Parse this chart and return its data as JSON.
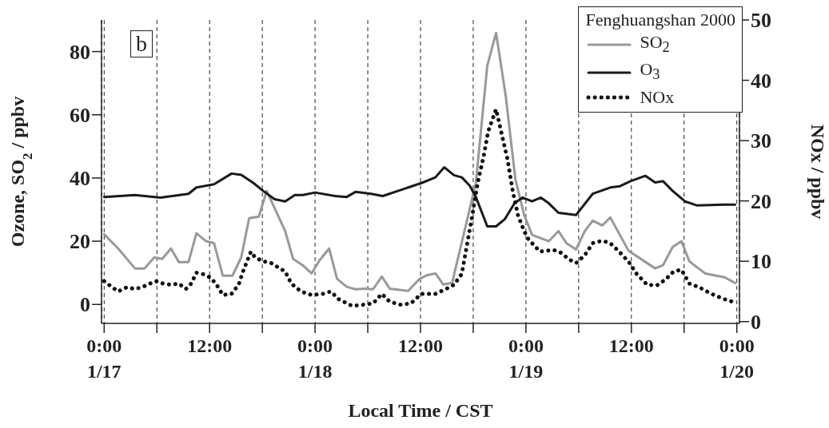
{
  "chart_data": {
    "type": "line",
    "xlabel": "Local Time / CST",
    "ylabel": "Ozone, SO$_{2}$  / ppbv",
    "y2label": "NOx / ppbv",
    "legend_title": "Fenghuangshan 2000",
    "legend": "top right",
    "grid": "x",
    "annotations": [
      "b"
    ],
    "xlim": [
      "2000-01-16T23:42",
      "2000-01-20T00:18"
    ],
    "ylim": [
      -6,
      90
    ],
    "y2lim": [
      -0.3,
      50
    ],
    "xticks": [
      {
        "value": "2000-01-17T00:00",
        "label": "0:00\n1/17"
      },
      {
        "value": "2000-01-17T06:00",
        "label": null
      },
      {
        "value": "2000-01-17T12:00",
        "label": "12:00"
      },
      {
        "value": "2000-01-17T18:00",
        "label": null
      },
      {
        "value": "2000-01-18T00:00",
        "label": "0:00\n1/18"
      },
      {
        "value": "2000-01-18T06:00",
        "label": null
      },
      {
        "value": "2000-01-18T12:00",
        "label": "12:00"
      },
      {
        "value": "2000-01-18T18:00",
        "label": null
      },
      {
        "value": "2000-01-19T00:00",
        "label": "0:00\n1/19"
      },
      {
        "value": "2000-01-19T06:00",
        "label": null
      },
      {
        "value": "2000-01-19T12:00",
        "label": "12:00"
      },
      {
        "value": "2000-01-19T18:00",
        "label": null
      },
      {
        "value": "2000-01-20T00:00",
        "label": "0:00\n1/20"
      }
    ],
    "yticks": [
      0,
      20,
      40,
      60,
      80
    ],
    "y2ticks": [
      0,
      10,
      20,
      30,
      40,
      50
    ],
    "series": [
      {
        "name": "SO$_{2}$",
        "color": "#999999",
        "line_style": "solid",
        "x": [
          "2000-01-17T00:00",
          "2000-01-17T01:36",
          "2000-01-17T03:30",
          "2000-01-17T04:36",
          "2000-01-17T05:42",
          "2000-01-17T06:36",
          "2000-01-17T07:36",
          "2000-01-17T08:30",
          "2000-01-17T09:36",
          "2000-01-17T10:30",
          "2000-01-17T11:36",
          "2000-01-17T12:30",
          "2000-01-17T13:30",
          "2000-01-17T14:36",
          "2000-01-17T15:36",
          "2000-01-17T16:30",
          "2000-01-17T17:36",
          "2000-01-17T18:30",
          "2000-01-17T20:36",
          "2000-01-17T21:30",
          "2000-01-17T22:36",
          "2000-01-17T23:36",
          "2000-01-18T00:30",
          "2000-01-18T01:36",
          "2000-01-18T02:30",
          "2000-01-18T03:36",
          "2000-01-18T04:36",
          "2000-01-18T05:42",
          "2000-01-18T06:36",
          "2000-01-18T07:36",
          "2000-01-18T08:30",
          "2000-01-18T10:36",
          "2000-01-18T11:54",
          "2000-01-18T12:48",
          "2000-01-18T13:42",
          "2000-01-18T14:36",
          "2000-01-18T15:36",
          "2000-01-18T18:18",
          "2000-01-18T19:36",
          "2000-01-18T20:36",
          "2000-01-18T21:42",
          "2000-01-18T22:48",
          "2000-01-18T23:48",
          "2000-01-19T00:42",
          "2000-01-19T02:36",
          "2000-01-19T03:42",
          "2000-01-19T04:36",
          "2000-01-19T05:42",
          "2000-01-19T06:42",
          "2000-01-19T07:36",
          "2000-01-19T08:42",
          "2000-01-19T09:36",
          "2000-01-19T11:42",
          "2000-01-19T14:42",
          "2000-01-19T15:36",
          "2000-01-19T16:42",
          "2000-01-19T17:42",
          "2000-01-19T18:36",
          "2000-01-19T20:24",
          "2000-01-19T22:36",
          "2000-01-19T23:48"
        ],
        "values": [
          22.2,
          17.7,
          11.4,
          11.4,
          14.9,
          14.4,
          17.7,
          13.4,
          13.4,
          22.5,
          20,
          19.4,
          9.1,
          9.1,
          14.9,
          27.3,
          27.8,
          35.9,
          23.2,
          14.4,
          12.4,
          9.8,
          13.9,
          17.7,
          8.1,
          5.6,
          4.8,
          5,
          4.8,
          8.8,
          5,
          4.3,
          8.1,
          9.3,
          9.8,
          6.3,
          6.8,
          38.4,
          75.5,
          85.9,
          66,
          39.6,
          28.3,
          22,
          20,
          23.2,
          19.4,
          17.4,
          23.2,
          26.5,
          25,
          27.5,
          16.9,
          11.4,
          12.4,
          18.2,
          20,
          13.6,
          9.8,
          8.6,
          6.8
        ]
      },
      {
        "name": "O$_{3}$",
        "color": "#1a1a1a",
        "line_style": "solid",
        "x": [
          "2000-01-17T00:00",
          "2000-01-17T03:30",
          "2000-01-17T06:24",
          "2000-01-17T09:36",
          "2000-01-17T10:30",
          "2000-01-17T12:30",
          "2000-01-17T14:30",
          "2000-01-17T15:36",
          "2000-01-17T17:00",
          "2000-01-17T18:06",
          "2000-01-17T19:24",
          "2000-01-17T20:36",
          "2000-01-17T21:42",
          "2000-01-17T22:36",
          "2000-01-18T00:00",
          "2000-01-18T02:18",
          "2000-01-18T03:36",
          "2000-01-18T04:36",
          "2000-01-18T06:24",
          "2000-01-18T07:42",
          "2000-01-18T10:36",
          "2000-01-18T12:06",
          "2000-01-18T13:42",
          "2000-01-18T14:42",
          "2000-01-18T15:48",
          "2000-01-18T16:42",
          "2000-01-18T17:36",
          "2000-01-18T18:18",
          "2000-01-18T19:36",
          "2000-01-18T20:36",
          "2000-01-18T21:36",
          "2000-01-18T22:42",
          "2000-01-18T23:36",
          "2000-01-19T00:42",
          "2000-01-19T01:42",
          "2000-01-19T02:36",
          "2000-01-19T03:42",
          "2000-01-19T05:42",
          "2000-01-19T07:36",
          "2000-01-19T09:36",
          "2000-01-19T10:42",
          "2000-01-19T11:54",
          "2000-01-19T13:36",
          "2000-01-19T14:42",
          "2000-01-19T15:36",
          "2000-01-19T16:42",
          "2000-01-19T18:06",
          "2000-01-19T19:30",
          "2000-01-19T22:36",
          "2000-01-19T23:48"
        ],
        "values": [
          34,
          34.6,
          33.8,
          35,
          37,
          38,
          41.4,
          41,
          38.4,
          35.9,
          33.3,
          32.6,
          34.6,
          34.6,
          35.4,
          34.3,
          34,
          35.6,
          35,
          34.3,
          37,
          38.4,
          40.2,
          43.4,
          40.9,
          40.2,
          37.6,
          34,
          24.7,
          24.7,
          27,
          32,
          33.8,
          32.6,
          33.8,
          32,
          29,
          28.3,
          35,
          37,
          37.4,
          39,
          40.7,
          38.6,
          39,
          35.9,
          32.6,
          31.3,
          31.6,
          31.6
        ]
      },
      {
        "name": "NOx",
        "color": "#111111",
        "line_style": "dotted",
        "axis": "y2",
        "x": [
          "2000-01-17T00:00",
          "2000-01-17T00:54",
          "2000-01-17T01:36",
          "2000-01-17T02:36",
          "2000-01-17T03:30",
          "2000-01-17T04:18",
          "2000-01-17T05:12",
          "2000-01-17T05:54",
          "2000-01-17T06:42",
          "2000-01-17T07:36",
          "2000-01-17T08:30",
          "2000-01-17T09:18",
          "2000-01-17T09:54",
          "2000-01-17T10:30",
          "2000-01-17T11:12",
          "2000-01-17T12:06",
          "2000-01-17T12:48",
          "2000-01-17T13:30",
          "2000-01-17T14:30",
          "2000-01-17T15:18",
          "2000-01-17T15:48",
          "2000-01-17T16:42",
          "2000-01-17T17:12",
          "2000-01-17T18:06",
          "2000-01-17T19:00",
          "2000-01-17T20:36",
          "2000-01-17T21:18",
          "2000-01-17T22:24",
          "2000-01-17T23:36",
          "2000-01-18T00:54",
          "2000-01-18T01:48",
          "2000-01-18T02:42",
          "2000-01-18T04:12",
          "2000-01-18T05:30",
          "2000-01-18T06:36",
          "2000-01-18T07:36",
          "2000-01-18T08:30",
          "2000-01-18T09:42",
          "2000-01-18T10:54",
          "2000-01-18T12:06",
          "2000-01-18T13:42",
          "2000-01-18T14:54",
          "2000-01-18T15:48",
          "2000-01-18T16:42",
          "2000-01-18T17:24",
          "2000-01-18T17:54",
          "2000-01-18T18:30",
          "2000-01-18T19:12",
          "2000-01-18T19:42",
          "2000-01-18T20:36",
          "2000-01-18T21:06",
          "2000-01-18T21:54",
          "2000-01-18T22:30",
          "2000-01-18T23:06",
          "2000-01-18T23:48",
          "2000-01-19T00:18",
          "2000-01-19T01:36",
          "2000-01-19T03:06",
          "2000-01-19T04:00",
          "2000-01-19T04:54",
          "2000-01-19T05:42",
          "2000-01-19T06:42",
          "2000-01-19T07:36",
          "2000-01-19T08:42",
          "2000-01-19T09:36",
          "2000-01-19T10:36",
          "2000-01-19T11:42",
          "2000-01-19T12:36",
          "2000-01-19T13:48",
          "2000-01-19T14:54",
          "2000-01-19T15:54",
          "2000-01-19T16:48",
          "2000-01-19T17:42",
          "2000-01-19T18:36",
          "2000-01-19T19:42",
          "2000-01-19T21:06",
          "2000-01-19T22:36",
          "2000-01-19T23:30"
        ],
        "values": [
          6.7,
          5.7,
          5,
          5.7,
          5.4,
          5.7,
          6.3,
          6.7,
          6.3,
          6.1,
          6.3,
          5.4,
          6.3,
          8.1,
          7.9,
          7.3,
          6.1,
          4.4,
          4.6,
          6.1,
          8.3,
          11.6,
          10.6,
          10,
          9.7,
          8.3,
          6.3,
          5,
          4.4,
          4.6,
          5,
          3.7,
          2.6,
          2.8,
          3,
          4.6,
          3.3,
          2.8,
          3,
          4.6,
          4.6,
          5.4,
          6.1,
          7.9,
          13.6,
          17.6,
          22.9,
          27.5,
          31.5,
          35.2,
          32,
          26.9,
          21.6,
          17.6,
          15,
          13.6,
          11.6,
          11.9,
          11.4,
          10.3,
          9.7,
          11,
          13,
          13.4,
          13,
          11.6,
          9.9,
          7.9,
          6.1,
          6,
          7,
          8.3,
          8.6,
          6.3,
          5.7,
          4.6,
          3.7,
          3.3
        ]
      }
    ]
  }
}
